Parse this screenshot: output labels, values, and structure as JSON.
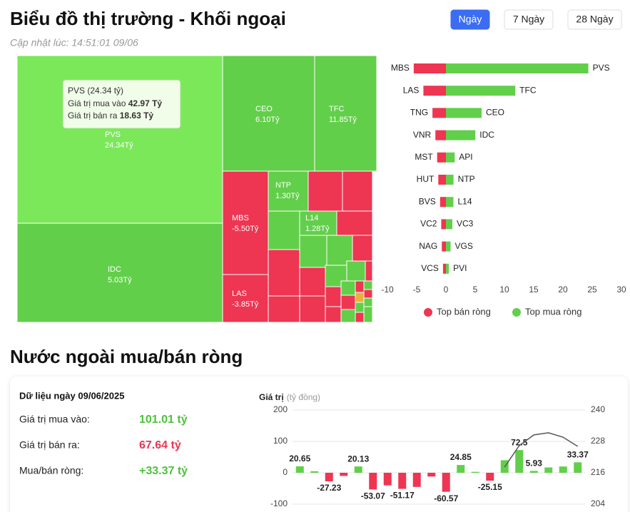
{
  "header": {
    "title": "Biểu đồ thị trường - Khối ngoại",
    "updated": "Cập nhật lúc: 14:51:01 09/06",
    "tabs": [
      "Ngày",
      "7 Ngày",
      "28 Ngày"
    ],
    "active_tab": 0
  },
  "treemap": {
    "tooltip": {
      "title": "PVS (24.34 tỷ)",
      "buy_label": "Giá trị mua vào",
      "buy": "42.97 Tỷ",
      "sell_label": "Giá trị bán ra",
      "sell": "18.63 Tỷ"
    },
    "tiles": [
      {
        "name": "PVS",
        "value": 24.34,
        "value_label": "24.34Tỷ"
      },
      {
        "name": "IDC",
        "value": 5.03,
        "value_label": "5.03Tỷ"
      },
      {
        "name": "CEO",
        "value": 6.1,
        "value_label": "6.10Tỷ"
      },
      {
        "name": "TFC",
        "value": 11.85,
        "value_label": "11.85Tỷ"
      },
      {
        "name": "MBS",
        "value": -5.5,
        "value_label": "-5.50Tỷ"
      },
      {
        "name": "LAS",
        "value": -3.85,
        "value_label": "-3.85Tỷ"
      },
      {
        "name": "NTP",
        "value": 1.3,
        "value_label": "1.30Tỷ"
      },
      {
        "name": "L14",
        "value": 1.28,
        "value_label": "1.28Tỷ"
      }
    ]
  },
  "chart_data": [
    {
      "type": "hbar",
      "legend": "bottom",
      "series": [
        {
          "name": "Top bán ròng",
          "color": "#ee3552",
          "categories": [
            "MBS",
            "LAS",
            "TNG",
            "VNR",
            "MST",
            "HUT",
            "BVS",
            "VC2",
            "NAG",
            "VCS"
          ],
          "values": [
            -5.5,
            -3.85,
            -2.3,
            -1.8,
            -1.5,
            -1.3,
            -1.0,
            -0.8,
            -0.7,
            -0.5
          ]
        },
        {
          "name": "Top mua ròng",
          "color": "#62cf4a",
          "categories": [
            "PVS",
            "TFC",
            "CEO",
            "IDC",
            "API",
            "NTP",
            "L14",
            "VC3",
            "VGS",
            "PVI"
          ],
          "values": [
            24.34,
            11.85,
            6.1,
            5.03,
            1.5,
            1.3,
            1.28,
            1.1,
            0.8,
            0.5
          ]
        }
      ],
      "xlim": [
        -10,
        30
      ],
      "xticks": [
        -10,
        -5,
        0,
        5,
        10,
        15,
        20,
        25,
        30
      ]
    },
    {
      "type": "combo",
      "ylabel": "Giá trị",
      "yunit": "(tỷ đồng)",
      "grid": true,
      "series": [
        {
          "type": "bar",
          "positive_color": "#62cf4a",
          "negative_color": "#ee3552",
          "values": [
            20.65,
            5,
            -27.23,
            -10,
            20.13,
            -53.07,
            -40,
            -51.17,
            -45,
            -12,
            -60.57,
            24.85,
            3,
            -25.15,
            40,
            72.5,
            5.93,
            17,
            20,
            33.37
          ],
          "value_labels": [
            "20.65",
            null,
            "-27.23",
            null,
            "20.13",
            "-53.07",
            null,
            "-51.17",
            null,
            null,
            "-60.57",
            "24.85",
            null,
            "-25.15",
            null,
            "72.5",
            "5.93",
            null,
            null,
            "33.37"
          ]
        },
        {
          "type": "line",
          "axis": "y2",
          "color": "#555555",
          "values": [
            null,
            null,
            null,
            null,
            null,
            null,
            null,
            null,
            null,
            null,
            null,
            null,
            null,
            null,
            218.2,
            226.4,
            230.5,
            231.3,
            229.6,
            226.1
          ]
        }
      ],
      "ylim": [
        -100,
        200
      ],
      "yticks": [
        -100,
        0,
        100,
        200
      ],
      "y2lim": [
        204,
        240
      ],
      "y2ticks": [
        204,
        216,
        228,
        240
      ]
    }
  ],
  "section": {
    "title": "Nước ngoài mua/bán ròng"
  },
  "summary": {
    "title": "Dữ liệu ngày 09/06/2025",
    "rows": [
      {
        "label": "Giá trị mua vào:",
        "value": "101.01 tỷ",
        "color": "#4cc23a"
      },
      {
        "label": "Giá trị bán ra:",
        "value": "67.64 tỷ",
        "color": "#ee3552"
      },
      {
        "label": "Mua/bán ròng:",
        "value": "+33.37 tỷ",
        "color": "#4cc23a"
      }
    ]
  }
}
